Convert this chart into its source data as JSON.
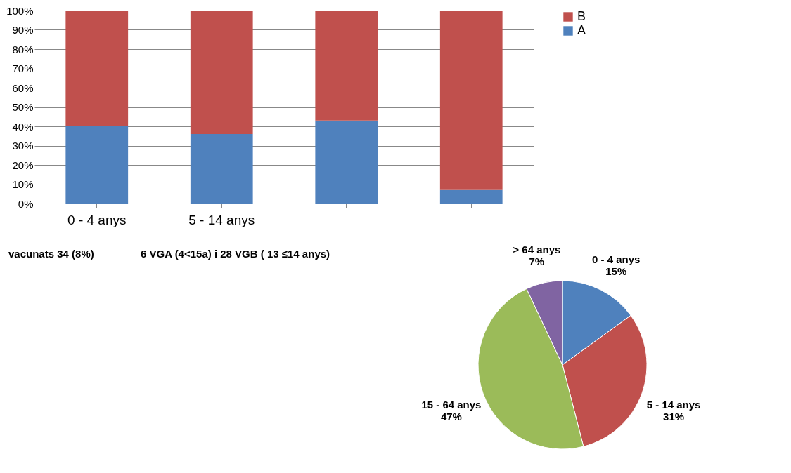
{
  "chart_data": [
    {
      "type": "bar",
      "stacked": true,
      "categories": [
        "0 - 4 anys",
        "5 - 14 anys",
        null,
        null
      ],
      "series": [
        {
          "name": "A",
          "color": "#4f81bd",
          "values": [
            40,
            36,
            43,
            7
          ]
        },
        {
          "name": "B",
          "color": "#c0504d",
          "values": [
            60,
            64,
            57,
            93
          ]
        }
      ],
      "ylim": [
        0,
        100
      ],
      "yticks": [
        {
          "value": 0,
          "label": "0%"
        },
        {
          "value": 10,
          "label": "10%"
        },
        {
          "value": 20,
          "label": "20%"
        },
        {
          "value": 30,
          "label": "30%"
        },
        {
          "value": 40,
          "label": "40%"
        },
        {
          "value": 50,
          "label": "50%"
        },
        {
          "value": 60,
          "label": "60%"
        },
        {
          "value": 70,
          "label": "70%"
        },
        {
          "value": 80,
          "label": "80%"
        },
        {
          "value": 90,
          "label": "90%"
        },
        {
          "value": 100,
          "label": "100%"
        }
      ],
      "grid": "y",
      "legend": "right"
    },
    {
      "type": "pie",
      "categories": [
        "0 - 4 anys",
        "5 - 14 anys",
        "15 - 64 anys",
        "> 64 anys"
      ],
      "values": [
        15,
        31,
        47,
        7
      ],
      "colors": [
        "#4f81bd",
        "#c0504d",
        "#9bbb59",
        "#8064a2"
      ],
      "value_labels": [
        "15%",
        "31%",
        "47%",
        "7%"
      ],
      "annotations": [
        "vacunats 34 (8%)",
        "6 VGA (4<15a) i 28 VGB ( 13 ≤14 anys)"
      ]
    }
  ]
}
